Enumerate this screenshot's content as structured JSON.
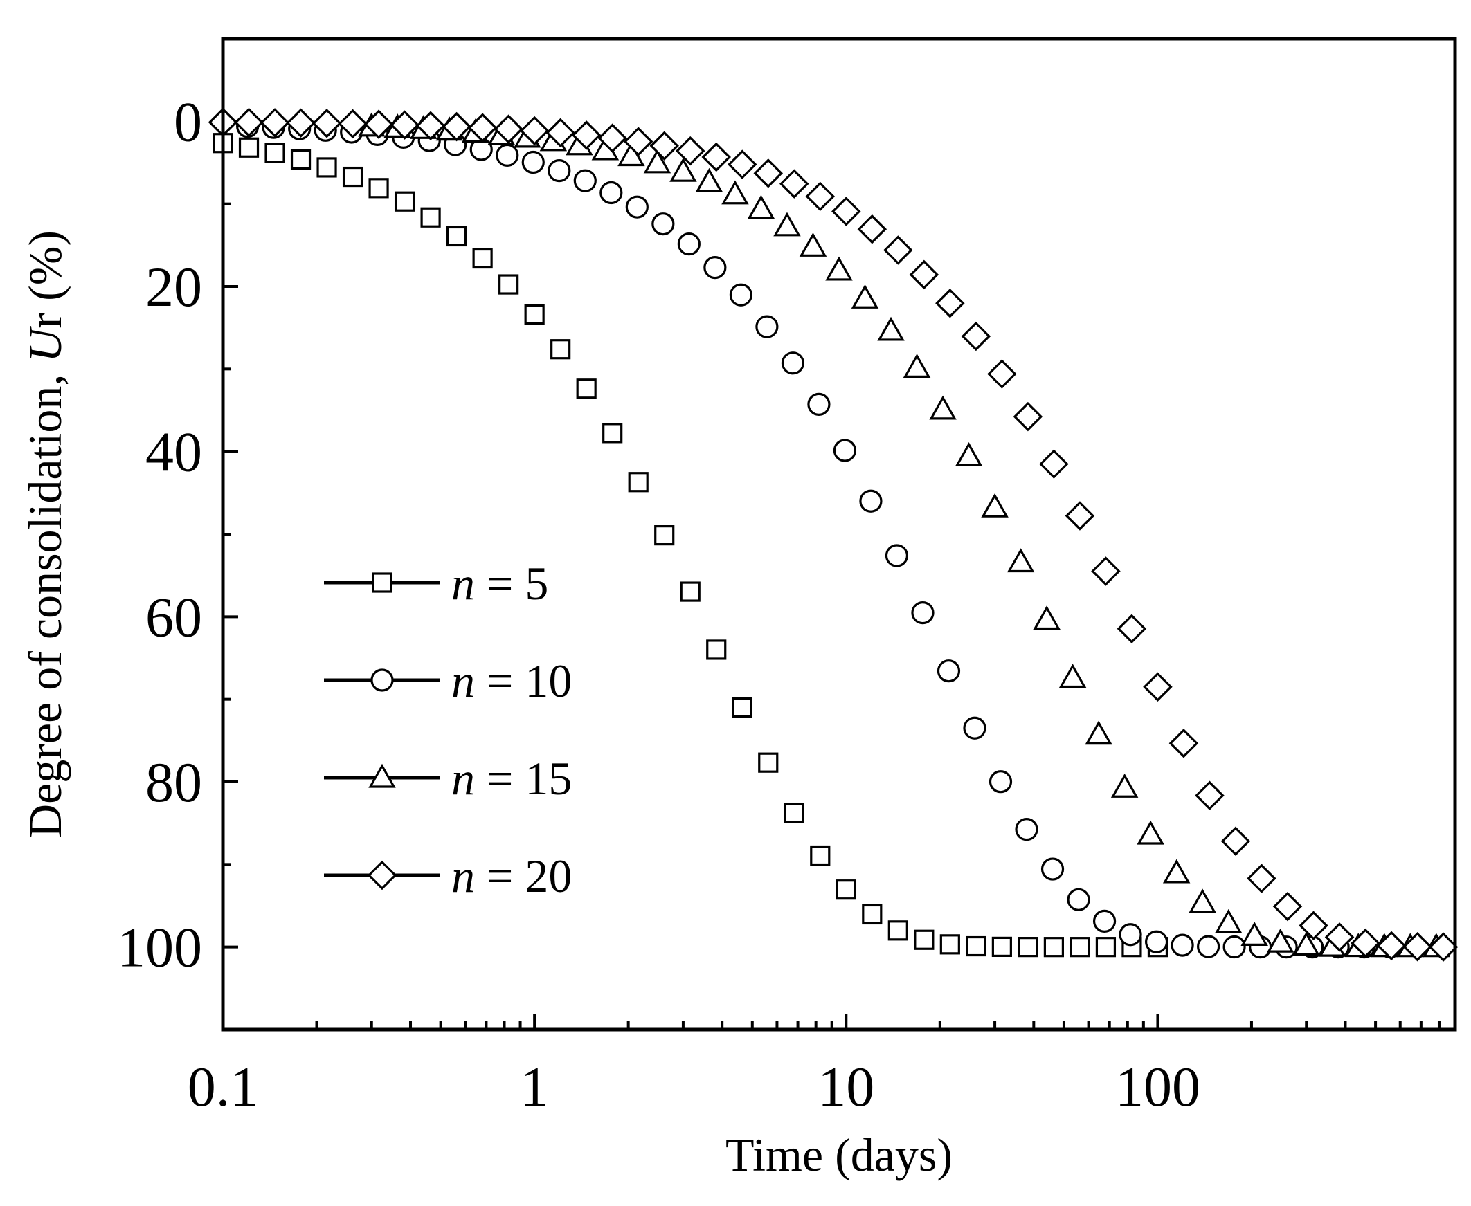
{
  "chart_data": {
    "type": "scatter",
    "title": "",
    "xlabel": "Time (days)",
    "ylabel_prefix": "Degree of  consolidation, ",
    "ylabel_symbol": "U",
    "ylabel_subscript": "r",
    "ylabel_suffix": " (%)",
    "xscale": "log",
    "xlim": [
      0.1,
      900
    ],
    "ylim": [
      -10,
      110
    ],
    "y_inverted": true,
    "xticks": [
      0.1,
      1,
      10,
      100
    ],
    "xtick_labels": [
      "0.1",
      "1",
      "10",
      "100"
    ],
    "yticks": [
      0,
      20,
      40,
      60,
      80,
      100
    ],
    "ytick_labels": [
      "0",
      "20",
      "40",
      "60",
      "80",
      "100"
    ],
    "legend_position": "lower-left",
    "series": [
      {
        "name": "n = 5",
        "n_var": "n",
        "n_rest": " = 5",
        "marker": "square",
        "t50": 2.6,
        "t0": 0.1,
        "xmax": 100
      },
      {
        "name": "n = 10",
        "n_var": "n",
        "n_rest": " = 10",
        "marker": "circle",
        "t50": 13.5,
        "t0": 0.12,
        "xmax": 640
      },
      {
        "name": "n = 15",
        "n_var": "n",
        "n_rest": " = 15",
        "marker": "triangle",
        "t50": 33,
        "t0": 0.3,
        "xmax": 900
      },
      {
        "name": "n = 20",
        "n_var": "n",
        "n_rest": " = 20",
        "marker": "diamond",
        "t50": 60,
        "t0": 0.1,
        "xmax": 900
      }
    ],
    "points_per_decade": 12
  }
}
